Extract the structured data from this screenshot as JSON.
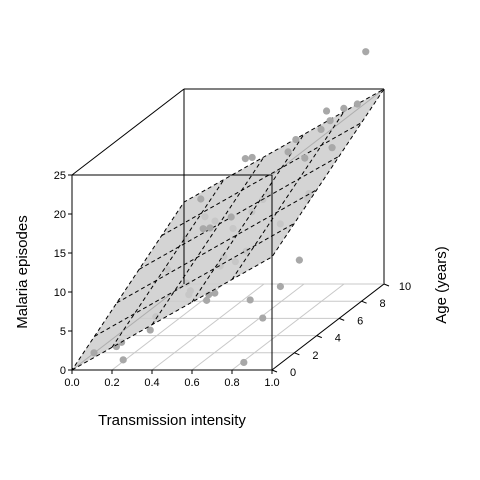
{
  "chart_data": {
    "type": "scatter",
    "projection": "3d",
    "xlabel": "Transmission intensity",
    "ylabel": "Age (years)",
    "zlabel": "Malaria episodes",
    "xlim": [
      0,
      1
    ],
    "ylim": [
      0,
      10
    ],
    "zlim": [
      0,
      25
    ],
    "x_ticks": [
      "0.0",
      "0.2",
      "0.4",
      "0.6",
      "0.8",
      "1.0"
    ],
    "y_ticks": [
      "0",
      "2",
      "4",
      "6",
      "8",
      "10"
    ],
    "z_ticks": [
      "0",
      "5",
      "10",
      "15",
      "20",
      "25"
    ],
    "regression_plane": {
      "intercept": 0,
      "slope_x": 14.5,
      "slope_y": 1.05,
      "style": "dashed grid",
      "fill": "#cccccc"
    },
    "colors": {
      "points": "#a8a8a8",
      "plane": "#cccccc",
      "grid": "#c8c8c8"
    },
    "points": [
      {
        "x": 0.11,
        "y": 0.0,
        "z": 2.2
      },
      {
        "x": 0.2,
        "y": 1.0,
        "z": 0.2
      },
      {
        "x": 0.22,
        "y": 0.5,
        "z": 3.0
      },
      {
        "x": 0.38,
        "y": 0.2,
        "z": 4.9
      },
      {
        "x": 0.5,
        "y": 1.5,
        "z": 8.0
      },
      {
        "x": 0.63,
        "y": 1.5,
        "z": 8.2
      },
      {
        "x": 0.92,
        "y": 0.6,
        "z": 6.0
      },
      {
        "x": 0.82,
        "y": 0.7,
        "z": 0.2
      },
      {
        "x": 0.93,
        "y": 2.0,
        "z": 8.5
      },
      {
        "x": 0.79,
        "y": 1.8,
        "z": 7.0
      },
      {
        "x": 0.65,
        "y": 0.6,
        "z": 9.0
      },
      {
        "x": 0.98,
        "y": 2.8,
        "z": 11.0
      },
      {
        "x": 0.11,
        "y": 2.0,
        "z": 0.8
      },
      {
        "x": 0.24,
        "y": 3.2,
        "z": 3.3
      },
      {
        "x": 0.34,
        "y": 4.5,
        "z": 5.2
      },
      {
        "x": 0.22,
        "y": 6.3,
        "z": 4.2
      },
      {
        "x": 0.53,
        "y": 4.1,
        "z": 10.0
      },
      {
        "x": 0.66,
        "y": 2.8,
        "z": 10.8
      },
      {
        "x": 0.92,
        "y": 4.6,
        "z": 17.0
      },
      {
        "x": 0.95,
        "y": 4.2,
        "z": 18.0
      },
      {
        "x": 0.58,
        "y": 5.7,
        "z": 14.0
      },
      {
        "x": 0.46,
        "y": 6.0,
        "z": 13.0
      },
      {
        "x": 0.41,
        "y": 5.0,
        "z": 12.7
      },
      {
        "x": 0.34,
        "y": 6.7,
        "z": 11.7
      },
      {
        "x": 0.32,
        "y": 6.0,
        "z": 11.5
      },
      {
        "x": 0.17,
        "y": 7.1,
        "z": 9.0
      },
      {
        "x": 0.04,
        "y": 7.8,
        "z": 4.3
      },
      {
        "x": 0.52,
        "y": 8.2,
        "z": 13.5
      },
      {
        "x": 0.54,
        "y": 7.4,
        "z": 13.7
      },
      {
        "x": 0.8,
        "y": 6.5,
        "z": 20.0
      },
      {
        "x": 0.66,
        "y": 8.2,
        "z": 20.5
      },
      {
        "x": 0.9,
        "y": 8.2,
        "z": 24.5
      },
      {
        "x": 0.82,
        "y": 8.4,
        "z": 22.7
      },
      {
        "x": 0.78,
        "y": 8.8,
        "z": 23.5
      },
      {
        "x": 0.92,
        "y": 9.8,
        "z": 30.0
      },
      {
        "x": 0.99,
        "y": 7.8,
        "z": 25.5
      },
      {
        "x": 0.38,
        "y": 9.3,
        "z": 17.0
      },
      {
        "x": 0.14,
        "y": 9.0,
        "z": 12.0
      },
      {
        "x": 0.2,
        "y": 8.3,
        "z": 10.5
      },
      {
        "x": 0.43,
        "y": 7.8,
        "z": 18.5
      },
      {
        "x": 0.61,
        "y": 8.4,
        "z": 18.7
      },
      {
        "x": 0.73,
        "y": 9.2,
        "z": 20.7
      },
      {
        "x": 0.97,
        "y": 5.9,
        "z": 22.0
      },
      {
        "x": 0.45,
        "y": 5.2,
        "z": 7.6
      },
      {
        "x": 0.55,
        "y": 2.2,
        "z": 6.5
      },
      {
        "x": 0.58,
        "y": 5.2,
        "z": 9.5
      },
      {
        "x": 0.7,
        "y": 6.1,
        "z": 12.0
      },
      {
        "x": 0.29,
        "y": 9.2,
        "z": 8.0
      }
    ]
  }
}
